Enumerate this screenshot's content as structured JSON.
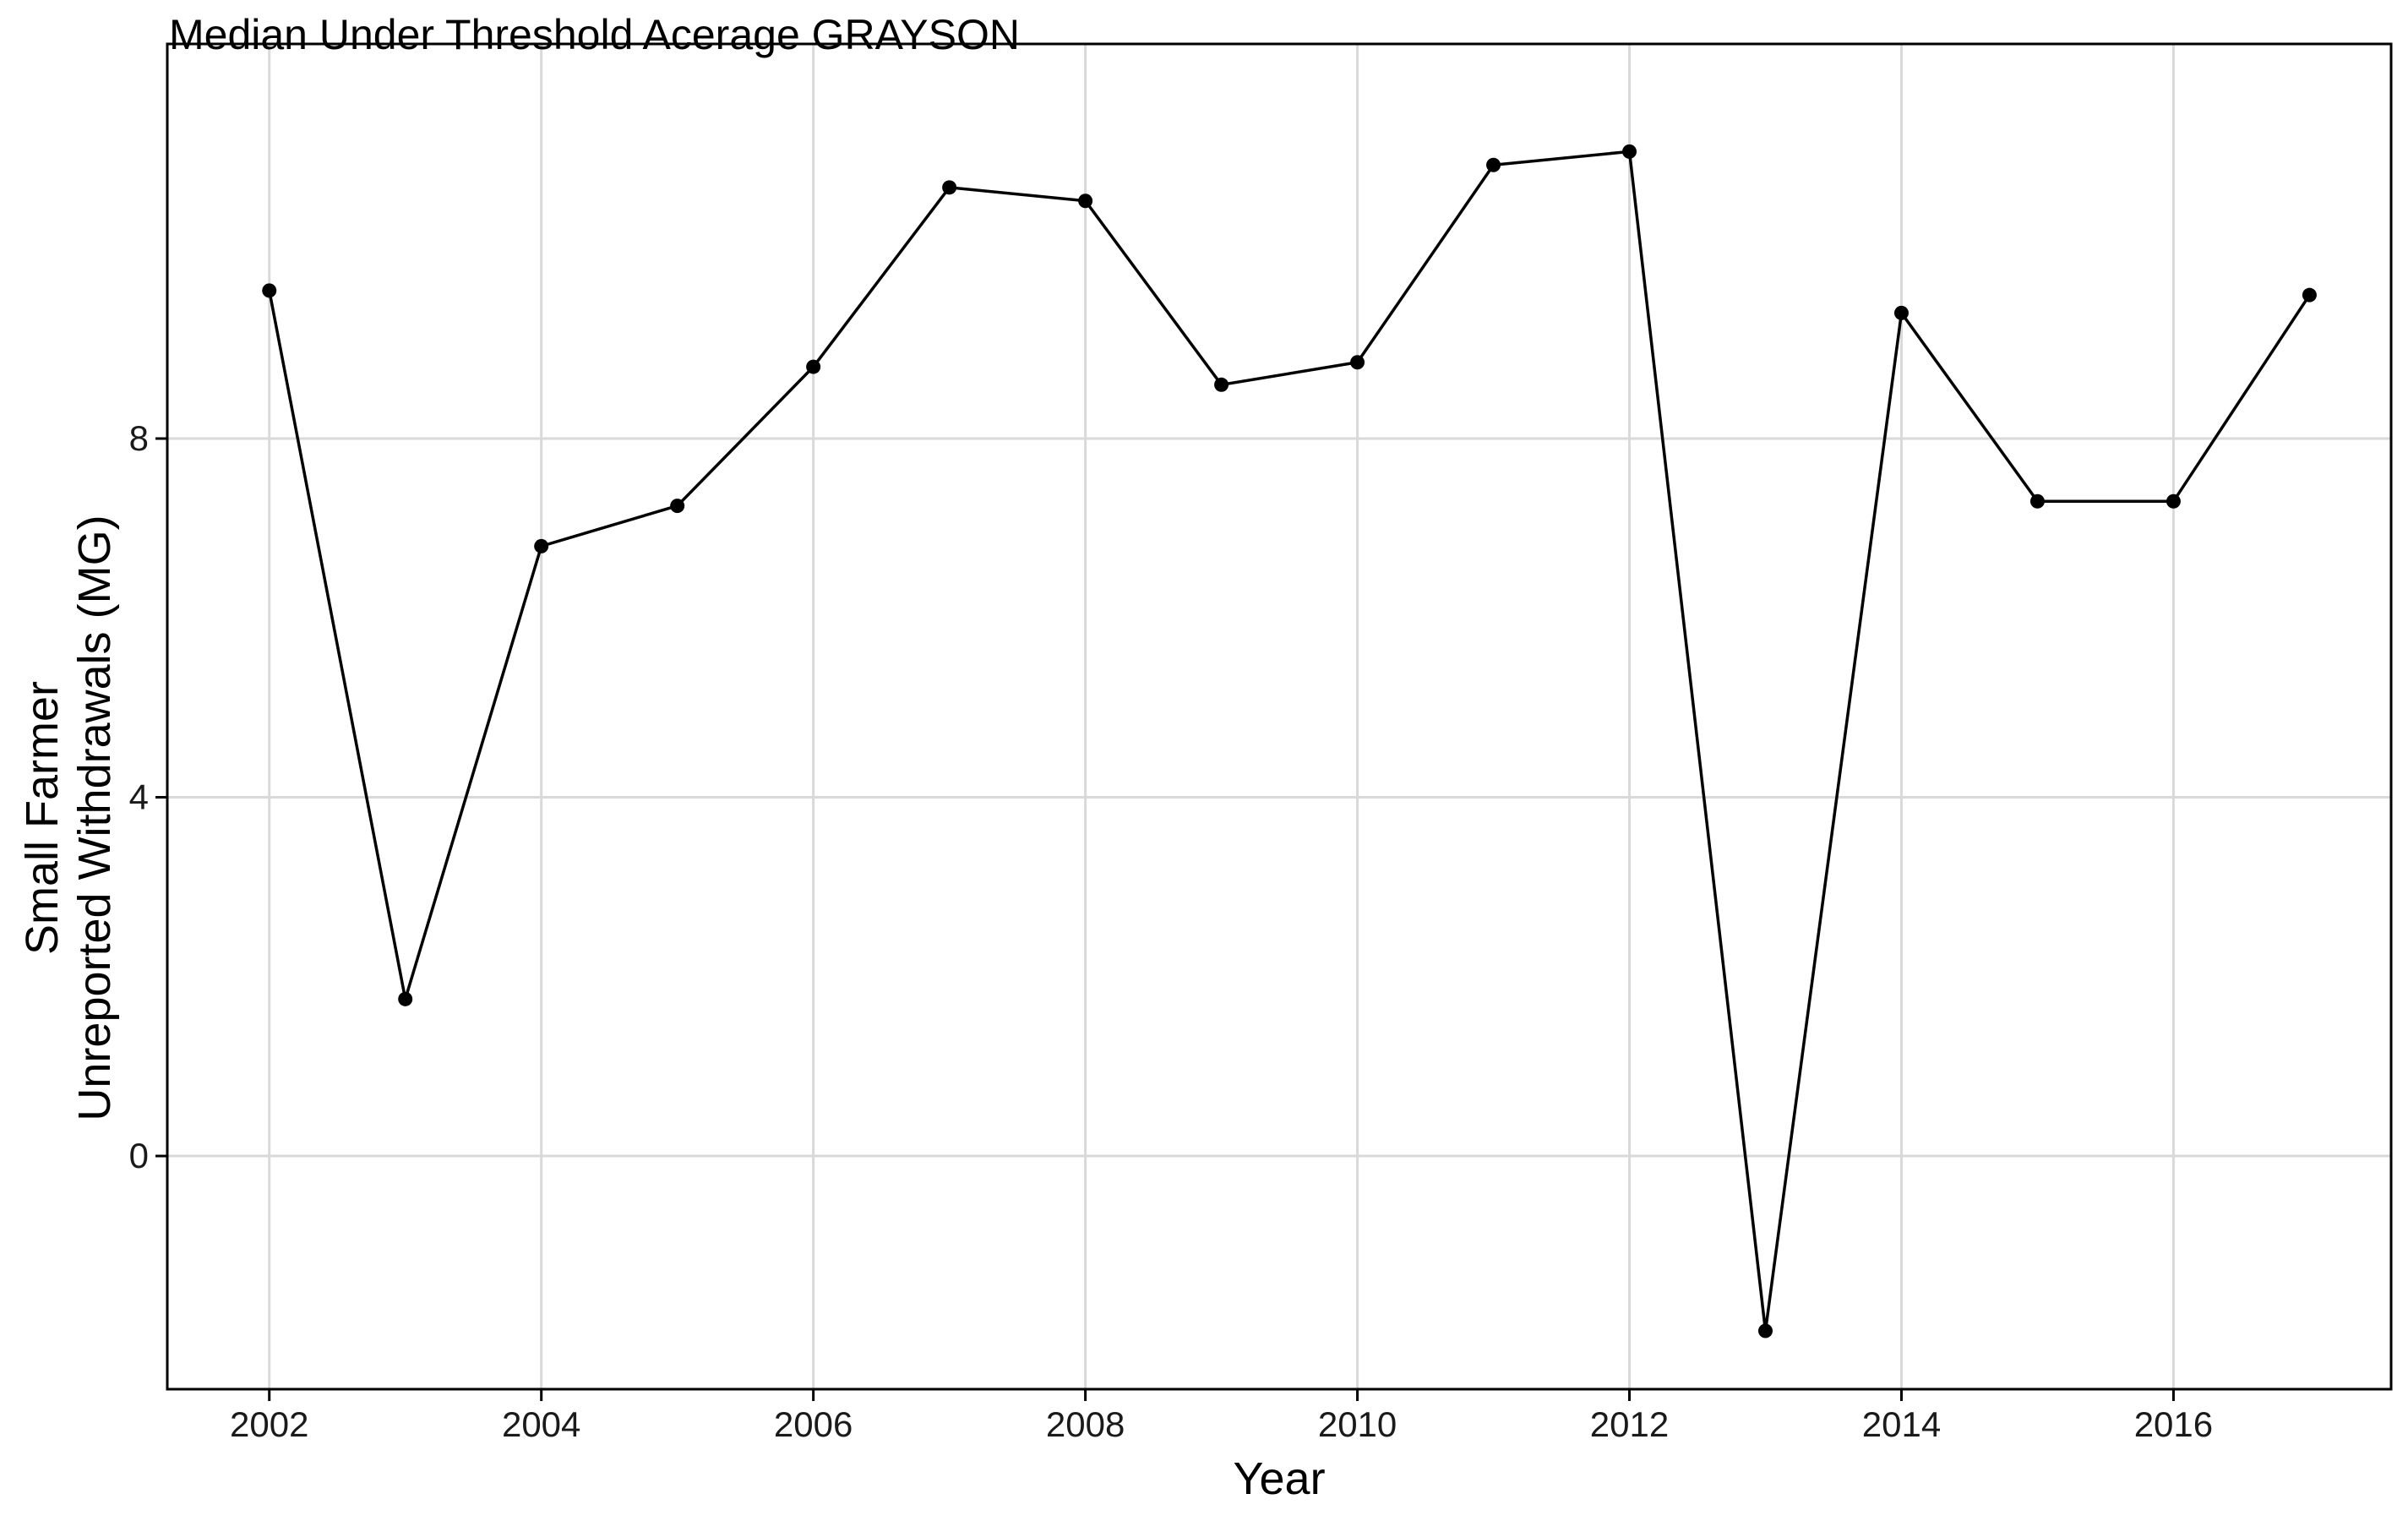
{
  "chart_data": {
    "type": "line",
    "title": "Median Under Threshold Acerage GRAYSON",
    "xlabel": "Year",
    "ylabel_lines": [
      "Small Farmer",
      "Unreported Withdrawals (MG)"
    ],
    "xlim": [
      2001.25,
      2017.6
    ],
    "ylim": [
      -2.6,
      12.4
    ],
    "x_ticks": [
      2002,
      2004,
      2006,
      2008,
      2010,
      2012,
      2014,
      2016
    ],
    "x_tick_labels": [
      "2002",
      "2004",
      "2006",
      "2008",
      "2010",
      "2012",
      "2014",
      "2016"
    ],
    "y_ticks": [
      0,
      4,
      8
    ],
    "y_tick_labels": [
      "0",
      "4",
      "8"
    ],
    "grid": true,
    "series": [
      {
        "x": [
          2002,
          2003,
          2004,
          2005,
          2006,
          2007,
          2008,
          2009,
          2010,
          2011,
          2012,
          2013,
          2014,
          2015,
          2016,
          2017
        ],
        "y": [
          9.65,
          1.75,
          6.8,
          7.25,
          8.8,
          10.8,
          10.65,
          8.6,
          8.85,
          11.05,
          11.2,
          -1.95,
          9.4,
          7.3,
          7.3,
          9.6
        ],
        "color": "#000000"
      }
    ]
  }
}
